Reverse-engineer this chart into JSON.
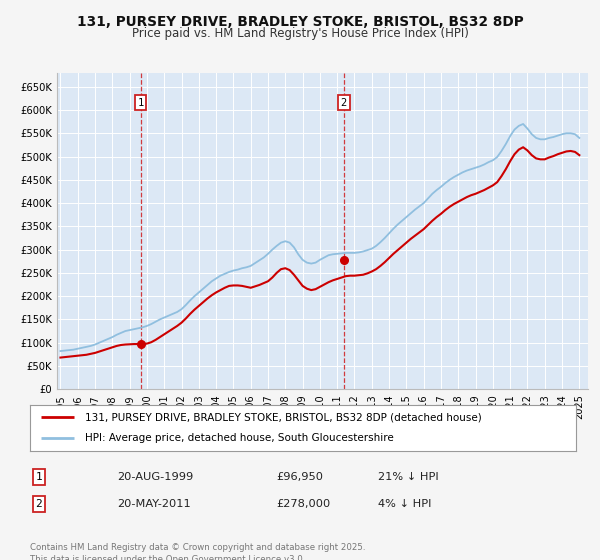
{
  "title1": "131, PURSEY DRIVE, BRADLEY STOKE, BRISTOL, BS32 8DP",
  "title2": "Price paid vs. HM Land Registry's House Price Index (HPI)",
  "fig_bg_color": "#f5f5f5",
  "plot_bg_color": "#dce8f5",
  "grid_color": "#ffffff",
  "red_color": "#cc0000",
  "blue_color": "#90bfdf",
  "marker1_date": 1999.64,
  "marker1_value": 96950,
  "marker2_date": 2011.38,
  "marker2_value": 278000,
  "vline1_date": 1999.64,
  "vline2_date": 2011.38,
  "xmin": 1994.8,
  "xmax": 2025.5,
  "ymin": 0,
  "ymax": 680000,
  "yticks": [
    0,
    50000,
    100000,
    150000,
    200000,
    250000,
    300000,
    350000,
    400000,
    450000,
    500000,
    550000,
    600000,
    650000
  ],
  "ytick_labels": [
    "£0",
    "£50K",
    "£100K",
    "£150K",
    "£200K",
    "£250K",
    "£300K",
    "£350K",
    "£400K",
    "£450K",
    "£500K",
    "£550K",
    "£600K",
    "£650K"
  ],
  "xticks": [
    1995,
    1996,
    1997,
    1998,
    1999,
    2000,
    2001,
    2002,
    2003,
    2004,
    2005,
    2006,
    2007,
    2008,
    2009,
    2010,
    2011,
    2012,
    2013,
    2014,
    2015,
    2016,
    2017,
    2018,
    2019,
    2020,
    2021,
    2022,
    2023,
    2024,
    2025
  ],
  "xtick_labels": [
    "1995",
    "1996",
    "1997",
    "1998",
    "1999",
    "2000",
    "2001",
    "2002",
    "2003",
    "2004",
    "2005",
    "2006",
    "2007",
    "2008",
    "2009",
    "2010",
    "2011",
    "2012",
    "2013",
    "2014",
    "2015",
    "2016",
    "2017",
    "2018",
    "2019",
    "2020",
    "2021",
    "2022",
    "2023",
    "2024",
    "2025"
  ],
  "legend_label_red": "131, PURSEY DRIVE, BRADLEY STOKE, BRISTOL, BS32 8DP (detached house)",
  "legend_label_blue": "HPI: Average price, detached house, South Gloucestershire",
  "annotation1_num": "1",
  "annotation1_date": "20-AUG-1999",
  "annotation1_price": "£96,950",
  "annotation1_hpi": "21% ↓ HPI",
  "annotation2_num": "2",
  "annotation2_date": "20-MAY-2011",
  "annotation2_price": "£278,000",
  "annotation2_hpi": "4% ↓ HPI",
  "footer": "Contains HM Land Registry data © Crown copyright and database right 2025.\nThis data is licensed under the Open Government Licence v3.0.",
  "hpi_data_x": [
    1995.0,
    1995.25,
    1995.5,
    1995.75,
    1996.0,
    1996.25,
    1996.5,
    1996.75,
    1997.0,
    1997.25,
    1997.5,
    1997.75,
    1998.0,
    1998.25,
    1998.5,
    1998.75,
    1999.0,
    1999.25,
    1999.5,
    1999.75,
    2000.0,
    2000.25,
    2000.5,
    2000.75,
    2001.0,
    2001.25,
    2001.5,
    2001.75,
    2002.0,
    2002.25,
    2002.5,
    2002.75,
    2003.0,
    2003.25,
    2003.5,
    2003.75,
    2004.0,
    2004.25,
    2004.5,
    2004.75,
    2005.0,
    2005.25,
    2005.5,
    2005.75,
    2006.0,
    2006.25,
    2006.5,
    2006.75,
    2007.0,
    2007.25,
    2007.5,
    2007.75,
    2008.0,
    2008.25,
    2008.5,
    2008.75,
    2009.0,
    2009.25,
    2009.5,
    2009.75,
    2010.0,
    2010.25,
    2010.5,
    2010.75,
    2011.0,
    2011.25,
    2011.5,
    2011.75,
    2012.0,
    2012.25,
    2012.5,
    2012.75,
    2013.0,
    2013.25,
    2013.5,
    2013.75,
    2014.0,
    2014.25,
    2014.5,
    2014.75,
    2015.0,
    2015.25,
    2015.5,
    2015.75,
    2016.0,
    2016.25,
    2016.5,
    2016.75,
    2017.0,
    2017.25,
    2017.5,
    2017.75,
    2018.0,
    2018.25,
    2018.5,
    2018.75,
    2019.0,
    2019.25,
    2019.5,
    2019.75,
    2020.0,
    2020.25,
    2020.5,
    2020.75,
    2021.0,
    2021.25,
    2021.5,
    2021.75,
    2022.0,
    2022.25,
    2022.5,
    2022.75,
    2023.0,
    2023.25,
    2023.5,
    2023.75,
    2024.0,
    2024.25,
    2024.5,
    2024.75,
    2025.0
  ],
  "hpi_data_y": [
    82000,
    83000,
    84000,
    85000,
    87000,
    89000,
    91000,
    93000,
    96000,
    100000,
    104000,
    108000,
    112000,
    117000,
    121000,
    125000,
    127000,
    129000,
    131000,
    133000,
    136000,
    140000,
    145000,
    150000,
    154000,
    158000,
    162000,
    166000,
    172000,
    181000,
    191000,
    200000,
    208000,
    216000,
    224000,
    232000,
    238000,
    244000,
    248000,
    252000,
    255000,
    257000,
    260000,
    262000,
    265000,
    271000,
    277000,
    283000,
    291000,
    300000,
    308000,
    315000,
    318000,
    315000,
    305000,
    290000,
    278000,
    272000,
    270000,
    272000,
    278000,
    283000,
    288000,
    290000,
    291000,
    292000,
    293000,
    293000,
    293000,
    294000,
    296000,
    299000,
    302000,
    308000,
    316000,
    325000,
    335000,
    345000,
    354000,
    362000,
    370000,
    378000,
    386000,
    393000,
    400000,
    410000,
    420000,
    428000,
    435000,
    443000,
    450000,
    456000,
    461000,
    466000,
    470000,
    473000,
    476000,
    479000,
    483000,
    488000,
    492000,
    499000,
    512000,
    527000,
    544000,
    558000,
    566000,
    570000,
    560000,
    548000,
    540000,
    537000,
    537000,
    540000,
    542000,
    545000,
    548000,
    550000,
    550000,
    548000,
    540000
  ],
  "red_data_x": [
    1995.0,
    1995.25,
    1995.5,
    1995.75,
    1996.0,
    1996.25,
    1996.5,
    1996.75,
    1997.0,
    1997.25,
    1997.5,
    1997.75,
    1998.0,
    1998.25,
    1998.5,
    1998.75,
    1999.0,
    1999.25,
    1999.5,
    1999.75,
    2000.0,
    2000.25,
    2000.5,
    2000.75,
    2001.0,
    2001.25,
    2001.5,
    2001.75,
    2002.0,
    2002.25,
    2002.5,
    2002.75,
    2003.0,
    2003.25,
    2003.5,
    2003.75,
    2004.0,
    2004.25,
    2004.5,
    2004.75,
    2005.0,
    2005.25,
    2005.5,
    2005.75,
    2006.0,
    2006.25,
    2006.5,
    2006.75,
    2007.0,
    2007.25,
    2007.5,
    2007.75,
    2008.0,
    2008.25,
    2008.5,
    2008.75,
    2009.0,
    2009.25,
    2009.5,
    2009.75,
    2010.0,
    2010.25,
    2010.5,
    2010.75,
    2011.0,
    2011.25,
    2011.5,
    2011.75,
    2012.0,
    2012.25,
    2012.5,
    2012.75,
    2013.0,
    2013.25,
    2013.5,
    2013.75,
    2014.0,
    2014.25,
    2014.5,
    2014.75,
    2015.0,
    2015.25,
    2015.5,
    2015.75,
    2016.0,
    2016.25,
    2016.5,
    2016.75,
    2017.0,
    2017.25,
    2017.5,
    2017.75,
    2018.0,
    2018.25,
    2018.5,
    2018.75,
    2019.0,
    2019.25,
    2019.5,
    2019.75,
    2020.0,
    2020.25,
    2020.5,
    2020.75,
    2021.0,
    2021.25,
    2021.5,
    2021.75,
    2022.0,
    2022.25,
    2022.5,
    2022.75,
    2023.0,
    2023.25,
    2023.5,
    2023.75,
    2024.0,
    2024.25,
    2024.5,
    2024.75,
    2025.0
  ],
  "red_data_y": [
    68000,
    69000,
    70000,
    71000,
    72000,
    73000,
    74000,
    76000,
    78000,
    81000,
    84000,
    87000,
    90000,
    93000,
    95000,
    96000,
    96500,
    97000,
    97000,
    97000,
    98000,
    101000,
    106000,
    112000,
    118000,
    124000,
    130000,
    136000,
    143000,
    152000,
    162000,
    171000,
    179000,
    187000,
    195000,
    202000,
    208000,
    213000,
    218000,
    222000,
    223000,
    223000,
    222000,
    220000,
    218000,
    221000,
    224000,
    228000,
    232000,
    240000,
    250000,
    258000,
    260000,
    256000,
    246000,
    234000,
    222000,
    216000,
    213000,
    215000,
    220000,
    225000,
    230000,
    234000,
    237000,
    240000,
    243000,
    244000,
    244000,
    245000,
    246000,
    249000,
    253000,
    258000,
    265000,
    273000,
    282000,
    291000,
    299000,
    307000,
    315000,
    323000,
    330000,
    337000,
    344000,
    353000,
    362000,
    370000,
    377000,
    385000,
    392000,
    398000,
    403000,
    408000,
    413000,
    417000,
    420000,
    424000,
    428000,
    433000,
    438000,
    445000,
    458000,
    473000,
    490000,
    505000,
    515000,
    520000,
    513000,
    503000,
    496000,
    494000,
    494000,
    498000,
    501000,
    505000,
    508000,
    511000,
    512000,
    510000,
    503000
  ]
}
